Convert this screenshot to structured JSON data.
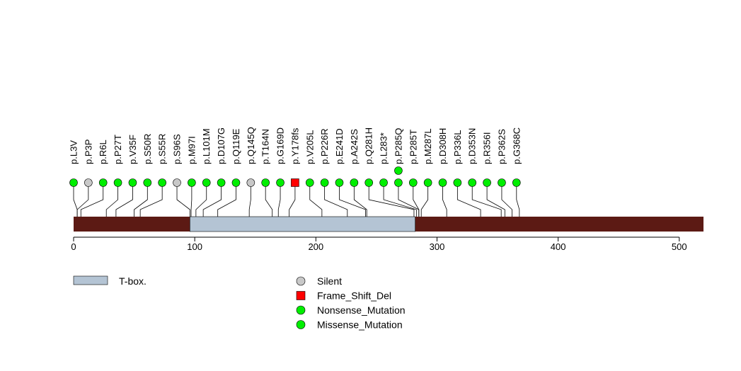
{
  "chart_data": {
    "type": "lollipop",
    "title": "",
    "xlim": [
      0,
      520
    ],
    "x_ticks": [
      0,
      100,
      200,
      300,
      400,
      500
    ],
    "protein_length": 520,
    "domains": [
      {
        "name": "T-box.",
        "start": 96,
        "end": 282,
        "color": "#b4c4d4"
      }
    ],
    "backbone_color": "#5c1a14",
    "mutations": [
      {
        "label": "p.L3V",
        "pos": 3,
        "type": "Missense_Mutation"
      },
      {
        "label": "p.P3P",
        "pos": 3,
        "type": "Silent"
      },
      {
        "label": "p.R6L",
        "pos": 6,
        "type": "Missense_Mutation"
      },
      {
        "label": "p.P27T",
        "pos": 27,
        "type": "Missense_Mutation"
      },
      {
        "label": "p.V35F",
        "pos": 35,
        "type": "Missense_Mutation"
      },
      {
        "label": "p.S50R",
        "pos": 50,
        "type": "Missense_Mutation"
      },
      {
        "label": "p.S55R",
        "pos": 55,
        "type": "Missense_Mutation"
      },
      {
        "label": "p.S96S",
        "pos": 96,
        "type": "Silent"
      },
      {
        "label": "p.M97I",
        "pos": 97,
        "type": "Missense_Mutation"
      },
      {
        "label": "p.L101M",
        "pos": 101,
        "type": "Missense_Mutation"
      },
      {
        "label": "p.D107G",
        "pos": 107,
        "type": "Missense_Mutation"
      },
      {
        "label": "p.Q119E",
        "pos": 119,
        "type": "Missense_Mutation"
      },
      {
        "label": "p.Q145Q",
        "pos": 145,
        "type": "Silent"
      },
      {
        "label": "p.T164N",
        "pos": 164,
        "type": "Missense_Mutation"
      },
      {
        "label": "p.G169D",
        "pos": 169,
        "type": "Missense_Mutation"
      },
      {
        "label": "p.Y178fs",
        "pos": 178,
        "type": "Frame_Shift_Del"
      },
      {
        "label": "p.V205L",
        "pos": 205,
        "type": "Missense_Mutation"
      },
      {
        "label": "p.P226R",
        "pos": 226,
        "type": "Missense_Mutation"
      },
      {
        "label": "p.E241D",
        "pos": 241,
        "type": "Missense_Mutation"
      },
      {
        "label": "p.A242S",
        "pos": 242,
        "type": "Missense_Mutation"
      },
      {
        "label": "p.Q281H",
        "pos": 281,
        "type": "Missense_Mutation"
      },
      {
        "label": "p.L283*",
        "pos": 283,
        "type": "Nonsense_Mutation"
      },
      {
        "label": "p.P285Q",
        "pos": 285,
        "type": "Missense_Mutation",
        "count": 2
      },
      {
        "label": "p.P285T",
        "pos": 285,
        "type": "Missense_Mutation"
      },
      {
        "label": "p.M287L",
        "pos": 287,
        "type": "Missense_Mutation"
      },
      {
        "label": "p.D308H",
        "pos": 308,
        "type": "Missense_Mutation"
      },
      {
        "label": "p.P336L",
        "pos": 336,
        "type": "Missense_Mutation"
      },
      {
        "label": "p.D353N",
        "pos": 353,
        "type": "Missense_Mutation"
      },
      {
        "label": "p.R356I",
        "pos": 356,
        "type": "Missense_Mutation"
      },
      {
        "label": "p.P362S",
        "pos": 362,
        "type": "Missense_Mutation"
      },
      {
        "label": "p.G368C",
        "pos": 368,
        "type": "Missense_Mutation"
      }
    ],
    "legend_domains": [
      {
        "name": "T-box.",
        "color": "#b4c4d4"
      }
    ],
    "legend_mutations": [
      {
        "name": "Silent",
        "shape": "circle",
        "color": "#c8c8c8"
      },
      {
        "name": "Frame_Shift_Del",
        "shape": "square",
        "color": "#ff0000"
      },
      {
        "name": "Nonsense_Mutation",
        "shape": "circle",
        "color": "#00ee00"
      },
      {
        "name": "Missense_Mutation",
        "shape": "circle",
        "color": "#00ee00"
      }
    ],
    "type_colors": {
      "Silent": "#c8c8c8",
      "Frame_Shift_Del": "#ff0000",
      "Nonsense_Mutation": "#00ee00",
      "Missense_Mutation": "#00ee00"
    }
  }
}
